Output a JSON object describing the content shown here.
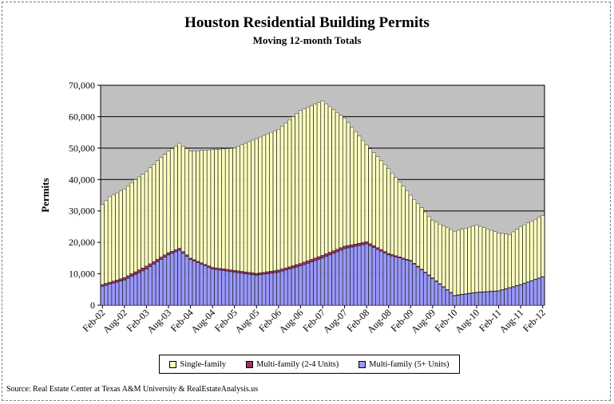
{
  "title": "Houston Residential Building Permits",
  "subtitle": "Moving 12-month Totals",
  "source": "Source: Real Estate Center at Texas A&M University & RealEstateAnalysis.us",
  "chart_data": {
    "type": "bar",
    "stacked": true,
    "title": "Houston Residential Building Permits",
    "subtitle": "Moving 12-month Totals",
    "xlabel": "",
    "ylabel": "Permits",
    "ylim": [
      0,
      70000
    ],
    "yticks": [
      0,
      10000,
      20000,
      30000,
      40000,
      50000,
      60000,
      70000
    ],
    "ytick_labels": [
      "0",
      "10,000",
      "20,000",
      "30,000",
      "40,000",
      "50,000",
      "60,000",
      "70,000"
    ],
    "grid": true,
    "legend_position": "bottom",
    "colors": {
      "Single-family": "#ffffc0",
      "Multi-family (2-4 Units)": "#993366",
      "Multi-family (5+ Units)": "#9999ff",
      "plot_background": "#c0c0c0"
    },
    "x_tick_labels": [
      "Feb-02",
      "Aug-02",
      "Feb-03",
      "Aug-03",
      "Feb-04",
      "Aug-04",
      "Feb-05",
      "Aug-05",
      "Feb-06",
      "Aug-06",
      "Feb-07",
      "Aug-07",
      "Feb-08",
      "Aug-08",
      "Feb-09",
      "Aug-09",
      "Feb-10",
      "Aug-10",
      "Feb-11",
      "Aug-11",
      "Feb-12"
    ],
    "x_start": "Feb-02",
    "x_end": "Feb-12",
    "total_anchors": [
      [
        "Feb-02",
        32000
      ],
      [
        "Apr-02",
        34500
      ],
      [
        "Aug-02",
        37000
      ],
      [
        "Nov-02",
        40000
      ],
      [
        "Feb-03",
        42500
      ],
      [
        "May-03",
        46000
      ],
      [
        "Aug-03",
        49000
      ],
      [
        "Nov-03",
        51500
      ],
      [
        "Feb-04",
        49000
      ],
      [
        "Aug-04",
        49500
      ],
      [
        "Feb-05",
        50000
      ],
      [
        "Aug-05",
        53000
      ],
      [
        "Feb-06",
        56000
      ],
      [
        "Aug-06",
        62000
      ],
      [
        "Feb-07",
        65000
      ],
      [
        "Aug-07",
        59500
      ],
      [
        "Feb-08",
        51000
      ],
      [
        "Aug-08",
        43500
      ],
      [
        "Feb-09",
        35000
      ],
      [
        "Aug-09",
        27000
      ],
      [
        "Feb-10",
        23500
      ],
      [
        "Aug-10",
        25500
      ],
      [
        "Feb-11",
        23000
      ],
      [
        "May-11",
        22500
      ],
      [
        "Aug-11",
        25000
      ],
      [
        "Feb-12",
        28500
      ]
    ],
    "multifamily_5plus_anchors": [
      [
        "Feb-02",
        6000
      ],
      [
        "Aug-02",
        8000
      ],
      [
        "Feb-03",
        11500
      ],
      [
        "Aug-03",
        16000
      ],
      [
        "Nov-03",
        17500
      ],
      [
        "Feb-04",
        14500
      ],
      [
        "Aug-04",
        11500
      ],
      [
        "Feb-05",
        10500
      ],
      [
        "Aug-05",
        9500
      ],
      [
        "Feb-06",
        10500
      ],
      [
        "Aug-06",
        12500
      ],
      [
        "Feb-07",
        15000
      ],
      [
        "Aug-07",
        18000
      ],
      [
        "Feb-08",
        19500
      ],
      [
        "Aug-08",
        16000
      ],
      [
        "Feb-09",
        14000
      ],
      [
        "Aug-09",
        8500
      ],
      [
        "Feb-10",
        3000
      ],
      [
        "Aug-10",
        4000
      ],
      [
        "Feb-11",
        4500
      ],
      [
        "Aug-11",
        6500
      ],
      [
        "Feb-12",
        9000
      ]
    ],
    "multifamily_2to4_anchors": [
      [
        "Feb-02",
        600
      ],
      [
        "Feb-03",
        1000
      ],
      [
        "Feb-04",
        500
      ],
      [
        "Feb-06",
        700
      ],
      [
        "Feb-07",
        900
      ],
      [
        "Feb-08",
        700
      ],
      [
        "Feb-09",
        300
      ],
      [
        "Feb-10",
        150
      ],
      [
        "Feb-12",
        100
      ]
    ]
  }
}
